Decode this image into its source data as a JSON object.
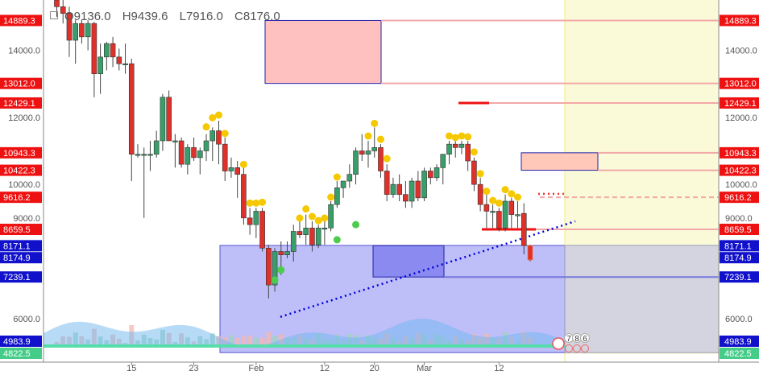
{
  "header": {
    "open": "O9136.0",
    "high": "H9439.6",
    "low": "L7916.0",
    "close": "C8176.0"
  },
  "chart_data": {
    "type": "candlestick",
    "y_range": [
      4700,
      15500
    ],
    "y_ticks": [
      {
        "value": 14000,
        "label": "14000.0"
      },
      {
        "value": 12000,
        "label": "12000.0"
      },
      {
        "value": 10000,
        "label": "10000.0"
      },
      {
        "value": 9000,
        "label": "9000.0"
      },
      {
        "value": 6000,
        "label": "6000.0"
      }
    ],
    "x_ticks": [
      {
        "index": 12,
        "label": "15"
      },
      {
        "index": 22,
        "label": "23"
      },
      {
        "index": 32,
        "label": "Feb"
      },
      {
        "index": 43,
        "label": "12"
      },
      {
        "index": 51,
        "label": "20"
      },
      {
        "index": 59,
        "label": "Mar"
      },
      {
        "index": 71,
        "label": "12"
      }
    ],
    "candles": [
      {
        "o": 15500,
        "h": 15700,
        "l": 15000,
        "c": 15300
      },
      {
        "o": 15300,
        "h": 15500,
        "l": 14800,
        "c": 15100
      },
      {
        "o": 15100,
        "h": 15300,
        "l": 13800,
        "c": 14300
      },
      {
        "o": 14300,
        "h": 14900,
        "l": 13600,
        "c": 14800
      },
      {
        "o": 14800,
        "h": 14900,
        "l": 14200,
        "c": 14400
      },
      {
        "o": 14400,
        "h": 14900,
        "l": 14000,
        "c": 14800
      },
      {
        "o": 14800,
        "h": 14850,
        "l": 12600,
        "c": 13300
      },
      {
        "o": 13300,
        "h": 14200,
        "l": 12700,
        "c": 13800
      },
      {
        "o": 13800,
        "h": 14250,
        "l": 13400,
        "c": 14200
      },
      {
        "o": 14200,
        "h": 14400,
        "l": 13500,
        "c": 13800
      },
      {
        "o": 13800,
        "h": 14050,
        "l": 13400,
        "c": 13600
      },
      {
        "o": 13600,
        "h": 14200,
        "l": 13300,
        "c": 13600
      },
      {
        "o": 13600,
        "h": 13750,
        "l": 10100,
        "c": 10900
      },
      {
        "o": 10900,
        "h": 11200,
        "l": 10800,
        "c": 10900
      },
      {
        "o": 10900,
        "h": 11100,
        "l": 9000,
        "c": 10900
      },
      {
        "o": 10900,
        "h": 11300,
        "l": 10400,
        "c": 10900
      },
      {
        "o": 10900,
        "h": 11600,
        "l": 10800,
        "c": 11300
      },
      {
        "o": 11300,
        "h": 12700,
        "l": 11000,
        "c": 12600
      },
      {
        "o": 12600,
        "h": 12800,
        "l": 11300,
        "c": 11300
      },
      {
        "o": 11300,
        "h": 11500,
        "l": 10500,
        "c": 11300
      },
      {
        "o": 11300,
        "h": 11400,
        "l": 10500,
        "c": 10600
      },
      {
        "o": 10600,
        "h": 11200,
        "l": 10300,
        "c": 11100
      },
      {
        "o": 11100,
        "h": 11400,
        "l": 10700,
        "c": 10800
      },
      {
        "o": 10800,
        "h": 11100,
        "l": 10300,
        "c": 11000
      },
      {
        "o": 11000,
        "h": 11500,
        "l": 10700,
        "c": 11300
      },
      {
        "o": 11300,
        "h": 11700,
        "l": 10700,
        "c": 11600
      },
      {
        "o": 11600,
        "h": 11900,
        "l": 10600,
        "c": 11200
      },
      {
        "o": 11200,
        "h": 11400,
        "l": 10100,
        "c": 10400
      },
      {
        "o": 10400,
        "h": 10800,
        "l": 10200,
        "c": 10500
      },
      {
        "o": 10500,
        "h": 10700,
        "l": 9600,
        "c": 10300
      },
      {
        "o": 10300,
        "h": 10500,
        "l": 8800,
        "c": 9000
      },
      {
        "o": 9000,
        "h": 9300,
        "l": 8500,
        "c": 8800
      },
      {
        "o": 8800,
        "h": 9300,
        "l": 8400,
        "c": 9200
      },
      {
        "o": 9200,
        "h": 9300,
        "l": 8000,
        "c": 8100
      },
      {
        "o": 8100,
        "h": 8200,
        "l": 6600,
        "c": 7000
      },
      {
        "o": 7000,
        "h": 8100,
        "l": 6800,
        "c": 8000
      },
      {
        "o": 8000,
        "h": 8300,
        "l": 7300,
        "c": 7900
      },
      {
        "o": 7900,
        "h": 8300,
        "l": 7800,
        "c": 8000
      },
      {
        "o": 8000,
        "h": 8800,
        "l": 7700,
        "c": 8600
      },
      {
        "o": 8600,
        "h": 8900,
        "l": 8400,
        "c": 8500
      },
      {
        "o": 8500,
        "h": 9100,
        "l": 8200,
        "c": 8700
      },
      {
        "o": 8700,
        "h": 8900,
        "l": 8000,
        "c": 8200
      },
      {
        "o": 8200,
        "h": 8800,
        "l": 8100,
        "c": 8700
      },
      {
        "o": 8700,
        "h": 8900,
        "l": 8200,
        "c": 8700
      },
      {
        "o": 8700,
        "h": 9500,
        "l": 8600,
        "c": 9400
      },
      {
        "o": 9400,
        "h": 10100,
        "l": 9300,
        "c": 9900
      },
      {
        "o": 9900,
        "h": 10100,
        "l": 9600,
        "c": 10100
      },
      {
        "o": 10100,
        "h": 10600,
        "l": 9900,
        "c": 10300
      },
      {
        "o": 10300,
        "h": 11100,
        "l": 10000,
        "c": 11000
      },
      {
        "o": 11000,
        "h": 11500,
        "l": 10700,
        "c": 10900
      },
      {
        "o": 10900,
        "h": 11300,
        "l": 10500,
        "c": 11000
      },
      {
        "o": 11000,
        "h": 11700,
        "l": 10800,
        "c": 11100
      },
      {
        "o": 11100,
        "h": 11200,
        "l": 10200,
        "c": 10400
      },
      {
        "o": 10400,
        "h": 10600,
        "l": 9500,
        "c": 9700
      },
      {
        "o": 9700,
        "h": 10200,
        "l": 9600,
        "c": 10000
      },
      {
        "o": 10000,
        "h": 10300,
        "l": 9500,
        "c": 9700
      },
      {
        "o": 9700,
        "h": 10100,
        "l": 9300,
        "c": 9500
      },
      {
        "o": 9500,
        "h": 10200,
        "l": 9300,
        "c": 10100
      },
      {
        "o": 10100,
        "h": 10400,
        "l": 9500,
        "c": 9600
      },
      {
        "o": 9600,
        "h": 10500,
        "l": 9500,
        "c": 10400
      },
      {
        "o": 10400,
        "h": 10500,
        "l": 10000,
        "c": 10200
      },
      {
        "o": 10200,
        "h": 10600,
        "l": 10100,
        "c": 10500
      },
      {
        "o": 10500,
        "h": 10900,
        "l": 10000,
        "c": 10900
      },
      {
        "o": 10900,
        "h": 11300,
        "l": 10600,
        "c": 11200
      },
      {
        "o": 11200,
        "h": 11300,
        "l": 10800,
        "c": 11100
      },
      {
        "o": 11100,
        "h": 11300,
        "l": 10900,
        "c": 11200
      },
      {
        "o": 11200,
        "h": 11300,
        "l": 10400,
        "c": 10700
      },
      {
        "o": 10700,
        "h": 10800,
        "l": 9800,
        "c": 10000
      },
      {
        "o": 10000,
        "h": 10200,
        "l": 9200,
        "c": 9400
      },
      {
        "o": 9400,
        "h": 9700,
        "l": 8700,
        "c": 9200
      },
      {
        "o": 9200,
        "h": 9400,
        "l": 8700,
        "c": 9200
      },
      {
        "o": 9200,
        "h": 9300,
        "l": 8600,
        "c": 8700
      },
      {
        "o": 8700,
        "h": 9700,
        "l": 8600,
        "c": 9500
      },
      {
        "o": 9500,
        "h": 9600,
        "l": 8700,
        "c": 9100
      },
      {
        "o": 9100,
        "h": 9500,
        "l": 8700,
        "c": 9100
      },
      {
        "o": 9136,
        "h": 9440,
        "l": 7916,
        "c": 8176
      },
      {
        "o": 8176,
        "h": 8200,
        "l": 7700,
        "c": 7750
      }
    ],
    "price_labels_right": [
      {
        "value": 14889.3,
        "label": "14889.3"
      },
      {
        "value": 13012.0,
        "label": "13012.0"
      },
      {
        "value": 12429.1,
        "label": "12429.1"
      },
      {
        "value": 10943.3,
        "label": "10943.3"
      },
      {
        "value": 10422.3,
        "label": "10422.3"
      },
      {
        "value": 9616.2,
        "label": "9616.2"
      },
      {
        "value": 8659.5,
        "label": "8659.5"
      },
      {
        "value": 8171.1,
        "label": "8171.1"
      },
      {
        "value": 8174.9,
        "label": "8174.9"
      },
      {
        "value": 7239.1,
        "label": "7239.1"
      },
      {
        "value": 4983.9,
        "label": "4983.9"
      },
      {
        "value": 4822.5,
        "label": "4822.5"
      }
    ],
    "price_labels_left": [
      {
        "value": 14889.3,
        "label": "14889.3"
      },
      {
        "value": 13012.0,
        "label": "13012.0"
      },
      {
        "value": 12429.1,
        "label": "12429.1"
      },
      {
        "value": 10943.3,
        "label": "10943.3"
      },
      {
        "value": 10422.3,
        "label": "10422.3"
      },
      {
        "value": 9616.2,
        "label": "9616.2"
      },
      {
        "value": 8659.5,
        "label": "8659.5"
      },
      {
        "value": 8171.1,
        "label": "8171.1"
      },
      {
        "value": 8174.9,
        "label": "8174.9"
      },
      {
        "value": 7239.1,
        "label": "7239.1"
      },
      {
        "value": 4983.9,
        "label": "4983.9"
      },
      {
        "value": 4822.5,
        "label": "4822.5"
      }
    ],
    "markers": [
      "7",
      "8",
      "6"
    ],
    "colors": {
      "up": "#3a9e6a",
      "down": "#e0302a",
      "resistance_zone": "#ffc0c0",
      "support_zone": "#b8b8f8",
      "inner_support_zone": "#8a8af0",
      "future_area": "#fafad8",
      "dot": "#f5c800",
      "green_dot": "#4ccc4c",
      "trendline": "#0000dd",
      "label_red": "#ee1111",
      "label_blue": "#1111cc"
    }
  }
}
